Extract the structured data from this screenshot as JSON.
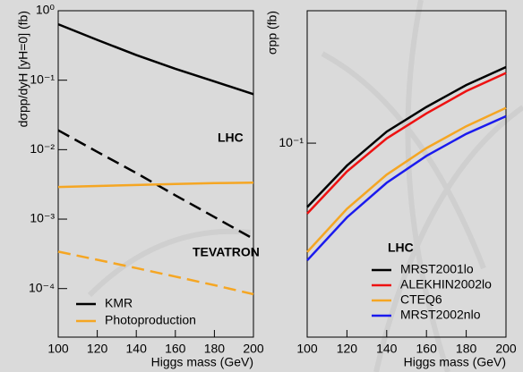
{
  "chart_data": [
    {
      "type": "line",
      "xlabel": "Higgs mass (GeV)",
      "ylabel": "dσpp/dyH [yH=0] (fb)",
      "log_y": true,
      "x": [
        100,
        120,
        140,
        160,
        180,
        200
      ],
      "xlim": [
        100,
        200
      ],
      "xticks": [
        100,
        120,
        140,
        160,
        180,
        200
      ],
      "ylim": [
        2e-05,
        1
      ],
      "yticks": [
        {
          "value": 1,
          "label": "10⁰"
        },
        {
          "value": 0.1,
          "label": "10⁻¹"
        },
        {
          "value": 0.01,
          "label": "10⁻²"
        },
        {
          "value": 0.001,
          "label": "10⁻³"
        },
        {
          "value": 0.0001,
          "label": "10⁻⁴"
        }
      ],
      "legend": "lower left",
      "annotations": [
        {
          "text": "LHC",
          "color": "#ee1111"
        },
        {
          "text": "TEVATRON",
          "color": "#ee1111"
        }
      ],
      "series": [
        {
          "name": "KMR",
          "color": "#000000",
          "linestyle": "solid",
          "values": [
            0.64,
            0.38,
            0.23,
            0.146,
            0.096,
            0.063
          ]
        },
        {
          "color": "#000000",
          "linestyle": "dashed",
          "values": [
            0.019,
            0.0093,
            0.0046,
            0.0022,
            0.00107,
            0.00052
          ]
        },
        {
          "name": "Photoproduction",
          "color": "#f5a623",
          "linestyle": "solid",
          "values": [
            0.0029,
            0.003,
            0.0031,
            0.0032,
            0.0033,
            0.00335
          ]
        },
        {
          "color": "#f5a623",
          "linestyle": "dashed",
          "values": [
            0.00034,
            0.00026,
            0.000197,
            0.000149,
            0.000112,
            8.3e-05
          ]
        }
      ]
    },
    {
      "type": "line",
      "xlabel": "Higgs mass (GeV)",
      "ylabel": "σpp (fb)",
      "log_y": true,
      "x": [
        100,
        120,
        140,
        160,
        180,
        200
      ],
      "xlim": [
        100,
        200
      ],
      "xticks": [
        100,
        120,
        140,
        160,
        180,
        200
      ],
      "ylim": [
        0.02,
        0.3
      ],
      "yticks": [
        {
          "value": 0.1,
          "label": "10⁻¹"
        }
      ],
      "legend": "lower right",
      "legend_title": {
        "text": "LHC",
        "color": "#ee1111"
      },
      "series": [
        {
          "name": "MRST2001lo",
          "color": "#000000",
          "linestyle": "solid",
          "values": [
            0.0588,
            0.083,
            0.11,
            0.135,
            0.162,
            0.188
          ]
        },
        {
          "name": "ALEKHIN2002lo",
          "color": "#ee1111",
          "linestyle": "solid",
          "values": [
            0.0557,
            0.079,
            0.104,
            0.128,
            0.154,
            0.179
          ]
        },
        {
          "name": "CTEQ6",
          "color": "#f5a623",
          "linestyle": "solid",
          "values": [
            0.0405,
            0.058,
            0.077,
            0.096,
            0.115,
            0.134
          ]
        },
        {
          "name": "MRST2002nlo",
          "color": "#1a1aee",
          "linestyle": "solid",
          "values": [
            0.0378,
            0.054,
            0.072,
            0.09,
            0.108,
            0.125
          ]
        }
      ]
    }
  ]
}
